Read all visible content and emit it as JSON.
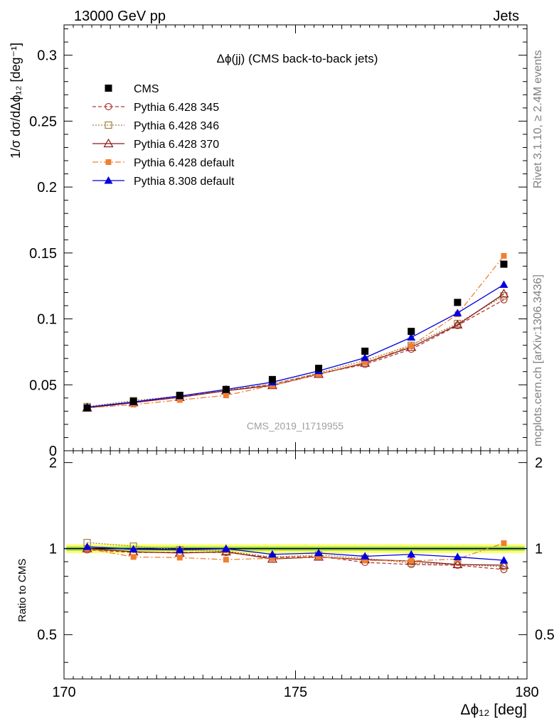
{
  "header": {
    "left": "13000 GeV pp",
    "right": "Jets"
  },
  "side_labels": {
    "rivet": "Rivet 3.1.10, ≥ 2.4M events",
    "mcplots": "mcplots.cern.ch [arXiv:1306.3436]"
  },
  "chart_data": {
    "type": "line",
    "title": "Δϕ(jj) (CMS back-to-back jets)",
    "watermark": "CMS_2019_I1719955",
    "xlabel": "Δϕ₁₂ [deg]",
    "ylabel": "1/σ dσ/dΔϕ₁₂ [deg⁻¹]",
    "ratio_ylabel": "Ratio to CMS",
    "xlim": [
      170,
      180
    ],
    "ylim": [
      0,
      0.323
    ],
    "ratio_ylim": [
      0.35,
      2.2
    ],
    "x_ticks": [
      "170",
      "175",
      "180"
    ],
    "y_ticks": [
      "0",
      "0.05",
      "0.1",
      "0.15",
      "0.2",
      "0.25",
      "0.3"
    ],
    "ratio_ticks": [
      "0.5",
      "1",
      "2"
    ],
    "legend_position": "top-left",
    "x": [
      170.5,
      171.5,
      172.5,
      173.5,
      174.5,
      175.5,
      176.5,
      177.5,
      178.5,
      179.5
    ],
    "series": [
      {
        "name": "CMS",
        "color": "#000000",
        "marker": "square",
        "line": "none",
        "values": [
          0.0325,
          0.0375,
          0.042,
          0.0465,
          0.054,
          0.0625,
          0.0755,
          0.0905,
          0.1125,
          0.1415
        ],
        "ratio": [
          1,
          1,
          1,
          1,
          1,
          1,
          1,
          1,
          1,
          1
        ]
      },
      {
        "name": "Pythia 6.428 345",
        "color": "#b23a3a",
        "marker": "circle-open",
        "line": "dashed",
        "values": [
          0.0325,
          0.0365,
          0.041,
          0.0455,
          0.0505,
          0.0585,
          0.0655,
          0.077,
          0.095,
          0.1145
        ],
        "ratio": [
          0.99,
          0.97,
          0.97,
          0.97,
          0.93,
          0.94,
          0.895,
          0.88,
          0.875,
          0.845
        ]
      },
      {
        "name": "Pythia 6.428 346",
        "color": "#a08040",
        "marker": "square-open",
        "line": "dotted",
        "values": [
          0.0335,
          0.038,
          0.0415,
          0.046,
          0.0505,
          0.059,
          0.0685,
          0.08,
          0.0965,
          0.1175
        ],
        "ratio": [
          1.05,
          1.02,
          0.99,
          0.98,
          0.935,
          0.95,
          0.925,
          0.89,
          0.88,
          0.865
        ]
      },
      {
        "name": "Pythia 6.428 370",
        "color": "#8b1a1a",
        "marker": "triangle-open",
        "line": "solid",
        "values": [
          0.0325,
          0.0365,
          0.0405,
          0.0455,
          0.0495,
          0.058,
          0.0665,
          0.0785,
          0.0955,
          0.119
        ],
        "ratio": [
          1.0,
          0.975,
          0.965,
          0.975,
          0.92,
          0.935,
          0.915,
          0.905,
          0.88,
          0.875
        ]
      },
      {
        "name": "Pythia 6.428 default",
        "color": "#f07f30",
        "marker": "square-filled-small",
        "line": "dashdot",
        "values": [
          0.0325,
          0.035,
          0.0385,
          0.042,
          0.0495,
          0.058,
          0.067,
          0.0795,
          0.1035,
          0.1478
        ],
        "ratio": [
          1.0,
          0.935,
          0.93,
          0.915,
          0.925,
          0.935,
          0.91,
          0.905,
          0.92,
          1.045
        ]
      },
      {
        "name": "Pythia 8.308 default",
        "color": "#0000e0",
        "marker": "triangle-filled",
        "line": "solid",
        "values": [
          0.033,
          0.037,
          0.0415,
          0.0465,
          0.052,
          0.0605,
          0.0705,
          0.086,
          0.1045,
          0.126
        ],
        "ratio": [
          1.015,
          0.995,
          0.99,
          1.0,
          0.955,
          0.965,
          0.94,
          0.955,
          0.935,
          0.91
        ]
      }
    ]
  }
}
